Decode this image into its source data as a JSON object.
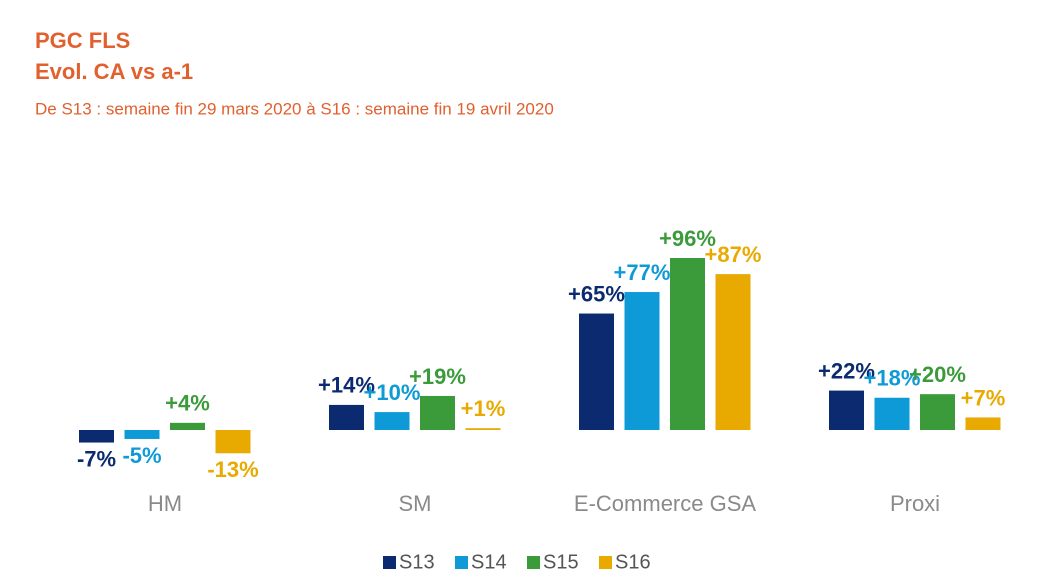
{
  "chart_data": {
    "type": "bar",
    "title": "PGC FLS",
    "subtitle": "Evol. CA vs a-1",
    "caption": "De S13 : semaine fin 29 mars 2020 à S16 : semaine fin 19 avril 2020",
    "categories": [
      "HM",
      "SM",
      "E-Commerce GSA",
      "Proxi"
    ],
    "series": [
      {
        "name": "S13",
        "color": "#0b2a6f",
        "values": [
          -7,
          14,
          65,
          22
        ],
        "value_labels": [
          "-7%",
          "+14%",
          "+65%",
          "+22%"
        ]
      },
      {
        "name": "S14",
        "color": "#0e9ad7",
        "values": [
          -5,
          10,
          77,
          18
        ],
        "value_labels": [
          "-5%",
          "+10%",
          "+77%",
          "+18%"
        ]
      },
      {
        "name": "S15",
        "color": "#3b9b3b",
        "values": [
          4,
          19,
          96,
          20
        ],
        "value_labels": [
          "+4%",
          "+19%",
          "+96%",
          "+20%"
        ]
      },
      {
        "name": "S16",
        "color": "#e8a900",
        "values": [
          -13,
          1,
          87,
          7
        ],
        "value_labels": [
          "-13%",
          "+1%",
          "+87%",
          "+7%"
        ]
      }
    ],
    "legend": "bottom"
  }
}
